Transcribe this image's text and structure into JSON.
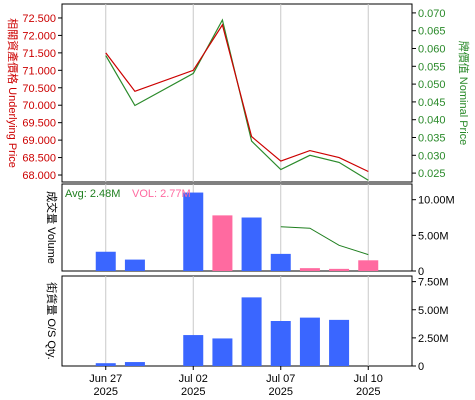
{
  "colors": {
    "underlying": "#cc0000",
    "nominal": "#2a8a2a",
    "volume_blue": "#3a66ff",
    "volume_pink": "#ff6aa0",
    "avg_line": "#1f7f1f",
    "grid": "#c8c8c8",
    "frame": "#000000"
  },
  "chart_data": [
    {
      "type": "line",
      "panel": "price",
      "x": [
        "Jun 26",
        "Jun 27",
        "Jun 30",
        "Jul 01",
        "Jul 02",
        "Jul 03",
        "Jul 04",
        "Jul 07",
        "Jul 08",
        "Jul 09",
        "Jul 10",
        "Jul 11"
      ],
      "series": [
        {
          "name": "相關資產價格 Underlying Price",
          "axis": "left",
          "values": [
            null,
            71.5,
            70.4,
            null,
            71.0,
            72.3,
            69.1,
            68.4,
            68.7,
            68.5,
            68.1,
            null
          ]
        },
        {
          "name": "牌價值 Nominal Price",
          "axis": "right",
          "values": [
            null,
            0.058,
            0.044,
            null,
            0.053,
            0.068,
            0.034,
            0.026,
            0.03,
            0.028,
            0.023,
            null
          ]
        }
      ],
      "ylabel_left": "相關資產價格 Underlying Price",
      "ylabel_right": "牌價值 Nominal Price",
      "yticks_left": [
        "72.500",
        "72.000",
        "71.500",
        "71.000",
        "70.500",
        "70.000",
        "69.500",
        "69.000",
        "68.500",
        "68.000"
      ],
      "yticks_right": [
        "0.070",
        "0.065",
        "0.060",
        "0.055",
        "0.050",
        "0.045",
        "0.040",
        "0.035",
        "0.030",
        "0.025"
      ],
      "ylim_left": [
        67.8,
        72.9
      ],
      "ylim_right": [
        0.0225,
        0.0725
      ],
      "grid": true
    },
    {
      "type": "bar",
      "panel": "volume",
      "x": [
        "Jun 26",
        "Jun 27",
        "Jun 30",
        "Jul 01",
        "Jul 02",
        "Jul 03",
        "Jul 04",
        "Jul 07",
        "Jul 08",
        "Jul 09",
        "Jul 10",
        "Jul 11"
      ],
      "values": [
        null,
        2.7,
        1.6,
        null,
        11.0,
        7.8,
        7.5,
        2.4,
        0.4,
        0.3,
        1.5,
        null
      ],
      "bar_colors": [
        "",
        "blue",
        "blue",
        "",
        "blue",
        "pink",
        "blue",
        "blue",
        "pink",
        "pink",
        "pink",
        ""
      ],
      "avg_line": [
        null,
        null,
        null,
        null,
        null,
        null,
        null,
        6.2,
        6.0,
        3.6,
        2.3,
        null
      ],
      "avg_label": "Avg: 2.48M",
      "vol_label": "VOL: 2.77M",
      "ylabel": "成交量 Volume",
      "yticks": [
        "10.00M",
        "5.00M",
        "0"
      ],
      "ylim": [
        0,
        12.2
      ],
      "unit": "M",
      "grid": true
    },
    {
      "type": "bar",
      "panel": "outstanding",
      "x": [
        "Jun 26",
        "Jun 27",
        "Jun 30",
        "Jul 01",
        "Jul 02",
        "Jul 03",
        "Jul 04",
        "Jul 07",
        "Jul 08",
        "Jul 09",
        "Jul 10",
        "Jul 11"
      ],
      "values": [
        null,
        0.25,
        0.35,
        null,
        2.75,
        2.45,
        6.1,
        4.0,
        4.3,
        4.1,
        null,
        null
      ],
      "ylabel": "街貨量 O/S Qty.",
      "yticks": [
        "7.50M",
        "5.00M",
        "2.50M",
        "0"
      ],
      "ylim": [
        0,
        8.0
      ],
      "unit": "M",
      "grid": true
    }
  ],
  "x_axis": {
    "ticks": [
      {
        "index": 1,
        "line1": "Jun 27",
        "line2": "2025"
      },
      {
        "index": 4,
        "line1": "Jul 02",
        "line2": "2025"
      },
      {
        "index": 7,
        "line1": "Jul 07",
        "line2": "2025"
      },
      {
        "index": 10,
        "line1": "Jul 10",
        "line2": "2025"
      }
    ]
  }
}
